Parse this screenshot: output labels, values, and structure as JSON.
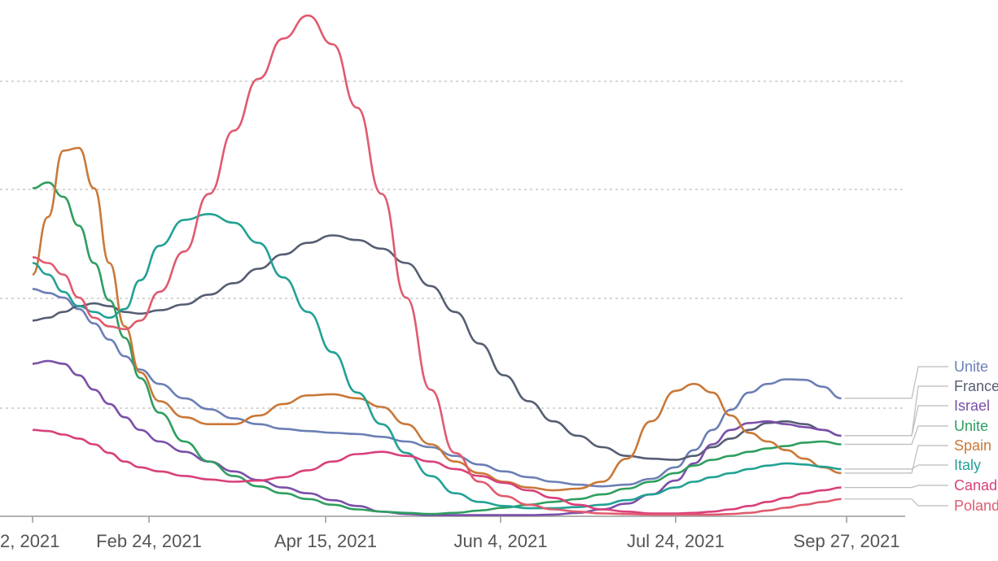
{
  "chart_data": {
    "type": "line",
    "title": "",
    "xlabel": "",
    "ylabel": "",
    "grid": true,
    "legend": "right",
    "x_tick_labels": [
      "2, 2021",
      "Feb 24, 2021",
      "Apr 15, 2021",
      "Jun 4, 2021",
      "Jul 24, 2021",
      "Sep 27, 2021"
    ],
    "x": [
      "2021-01-02",
      "2021-01-09",
      "2021-01-16",
      "2021-01-23",
      "2021-01-30",
      "2021-02-06",
      "2021-02-13",
      "2021-02-20",
      "2021-02-27",
      "2021-03-06",
      "2021-03-13",
      "2021-03-20",
      "2021-03-27",
      "2021-04-03",
      "2021-04-10",
      "2021-04-17",
      "2021-04-24",
      "2021-05-01",
      "2021-05-08",
      "2021-05-15",
      "2021-05-22",
      "2021-05-29",
      "2021-06-05",
      "2021-06-12",
      "2021-06-19",
      "2021-06-26",
      "2021-07-03",
      "2021-07-10",
      "2021-07-17",
      "2021-07-24",
      "2021-07-31",
      "2021-08-07",
      "2021-08-14",
      "2021-08-21",
      "2021-08-28",
      "2021-09-04",
      "2021-09-11",
      "2021-09-18",
      "2021-09-25"
    ],
    "series": [
      {
        "name": "Unite",
        "color": "#6b7fb5",
        "values": [
          395,
          388,
          380,
          360,
          335,
          307,
          278,
          255,
          230,
          205,
          186,
          170,
          160,
          152,
          148,
          145,
          143,
          138,
          130,
          120,
          105,
          90,
          78,
          68,
          60,
          55,
          52,
          55,
          65,
          85,
          115,
          150,
          185,
          215,
          230,
          238,
          237,
          225,
          205
        ]
      },
      {
        "name": "France",
        "color": "#555e72",
        "values": [
          340,
          345,
          355,
          365,
          370,
          365,
          355,
          352,
          358,
          368,
          385,
          405,
          430,
          455,
          475,
          488,
          480,
          465,
          440,
          400,
          355,
          300,
          245,
          200,
          165,
          140,
          120,
          105,
          100,
          98,
          105,
          120,
          135,
          150,
          162,
          165,
          160,
          150,
          140
        ]
      },
      {
        "name": "Israel",
        "color": "#7a4fa8",
        "values": [
          265,
          270,
          265,
          245,
          220,
          195,
          172,
          150,
          130,
          112,
          95,
          78,
          63,
          50,
          40,
          28,
          18,
          8,
          4,
          2,
          2,
          2,
          2,
          2,
          3,
          6,
          12,
          22,
          38,
          62,
          92,
          125,
          150,
          162,
          165,
          160,
          155,
          150,
          140
        ]
      },
      {
        "name": "Unite",
        "color": "#2e9e5f",
        "values": [
          570,
          580,
          555,
          505,
          440,
          375,
          310,
          240,
          180,
          130,
          95,
          70,
          52,
          40,
          30,
          20,
          12,
          8,
          6,
          4,
          6,
          10,
          15,
          20,
          25,
          30,
          38,
          48,
          60,
          75,
          88,
          98,
          105,
          112,
          118,
          122,
          128,
          130,
          125
        ]
      },
      {
        "name": "Spain",
        "color": "#c97838",
        "values": [
          420,
          520,
          635,
          640,
          570,
          440,
          330,
          250,
          200,
          172,
          160,
          160,
          175,
          195,
          210,
          212,
          205,
          190,
          160,
          125,
          95,
          75,
          60,
          50,
          45,
          48,
          60,
          100,
          165,
          218,
          230,
          215,
          175,
          145,
          130,
          115,
          100,
          85,
          75
        ]
      },
      {
        "name": "Italy",
        "color": "#22a195",
        "values": [
          440,
          420,
          390,
          365,
          355,
          345,
          360,
          410,
          470,
          515,
          525,
          510,
          475,
          415,
          355,
          285,
          215,
          160,
          110,
          70,
          40,
          25,
          18,
          14,
          14,
          16,
          20,
          28,
          38,
          50,
          60,
          68,
          75,
          82,
          88,
          92,
          90,
          86,
          82
        ]
      },
      {
        "name": "Canad",
        "color": "#d9407a",
        "values": [
          150,
          148,
          142,
          135,
          125,
          110,
          95,
          85,
          78,
          70,
          64,
          60,
          62,
          68,
          80,
          95,
          108,
          112,
          105,
          95,
          82,
          70,
          58,
          45,
          32,
          20,
          12,
          8,
          5,
          5,
          6,
          8,
          12,
          18,
          25,
          32,
          40,
          45,
          50
        ]
      },
      {
        "name": "Poland",
        "color": "#e05a6e",
        "values": [
          450,
          440,
          420,
          380,
          345,
          330,
          325,
          340,
          390,
          460,
          560,
          670,
          760,
          830,
          870,
          820,
          710,
          560,
          380,
          220,
          110,
          60,
          35,
          20,
          12,
          8,
          5,
          4,
          3,
          3,
          3,
          3,
          4,
          6,
          10,
          15,
          20,
          25,
          30
        ]
      }
    ],
    "legend_labels": [
      "Unite",
      "France",
      "Israel",
      "Unite",
      "Spain",
      "Italy",
      "Canad",
      "Poland"
    ],
    "ylim": [
      0,
      880
    ]
  }
}
